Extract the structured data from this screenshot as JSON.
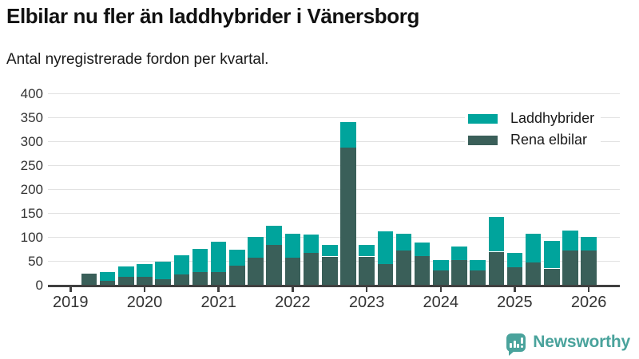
{
  "header": {
    "title": "Elbilar nu fler än laddhybrider i Vänersborg",
    "subtitle": "Antal nyregistrerade fordon per kvartal."
  },
  "branding": {
    "name": "Newsworthy",
    "color": "#4aa39c"
  },
  "colors": {
    "axis": "#404040",
    "grid": "#e2e2e2",
    "background": "#ffffff",
    "text": "#1a1a1a"
  },
  "chart_data": {
    "type": "bar",
    "stacked": true,
    "title": "Elbilar nu fler än laddhybrider i Vänersborg",
    "subtitle": "Antal nyregistrerade fordon per kvartal.",
    "x_unit": "quarter",
    "quarters": [
      "2019 Q1",
      "2019 Q2",
      "2019 Q3",
      "2019 Q4",
      "2020 Q1",
      "2020 Q2",
      "2020 Q3",
      "2020 Q4",
      "2021 Q1",
      "2021 Q2",
      "2021 Q3",
      "2021 Q4",
      "2022 Q1",
      "2022 Q2",
      "2022 Q3",
      "2022 Q4",
      "2023 Q1",
      "2023 Q2",
      "2023 Q3",
      "2023 Q4",
      "2024 Q1",
      "2024 Q2",
      "2024 Q3",
      "2024 Q4",
      "2025 Q1",
      "2025 Q2",
      "2025 Q3",
      "2025 Q4",
      "2026 Q1"
    ],
    "series": [
      {
        "name": "Laddhybrider",
        "color": "#00a49c",
        "values": [
          0,
          0,
          19,
          22,
          27,
          38,
          40,
          48,
          63,
          33,
          43,
          40,
          50,
          38,
          24,
          54,
          24,
          69,
          35,
          29,
          22,
          28,
          22,
          72,
          31,
          59,
          57,
          43,
          29
        ]
      },
      {
        "name": "Rena elbilar",
        "color": "#3a5f59",
        "values": [
          0,
          24,
          9,
          17,
          18,
          12,
          23,
          28,
          28,
          41,
          58,
          84,
          58,
          68,
          60,
          287,
          60,
          44,
          72,
          61,
          31,
          53,
          31,
          70,
          37,
          48,
          35,
          72,
          72
        ]
      }
    ],
    "stack_order_bottom_to_top": [
      "Rena elbilar",
      "Laddhybrider"
    ],
    "ylim": [
      0,
      400
    ],
    "yticks": [
      0,
      50,
      100,
      150,
      200,
      250,
      300,
      350,
      400
    ],
    "xtick_labels": [
      "2019",
      "2020",
      "2021",
      "2022",
      "2023",
      "2024",
      "2025",
      "2026"
    ],
    "grid": "horizontal",
    "legend_position": "top-right"
  }
}
